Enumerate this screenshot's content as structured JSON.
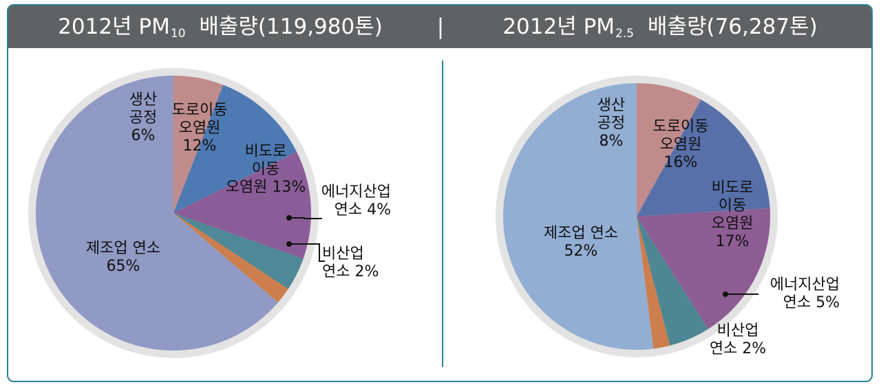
{
  "header": {
    "left": {
      "pre": "2012년 PM",
      "sub": "10",
      "post": " 배출량(119,980톤)"
    },
    "separator": "|",
    "right": {
      "pre": "2012년 PM",
      "sub": "2.5",
      "post": " 배출량(76,287톤)"
    }
  },
  "chart_data": [
    {
      "type": "pie",
      "title": "2012년 PM10 배출량(119,980톤)",
      "categories": [
        "생산공정",
        "도로이동오염원",
        "비도로이동오염원",
        "에너지산업연소",
        "비산업연소",
        "제조업 연소"
      ],
      "values": [
        6,
        12,
        13,
        4,
        2,
        65
      ],
      "colors": [
        "#c08c8b",
        "#4e7ab3",
        "#8b5d98",
        "#4f8896",
        "#cc7e4d",
        "#919ac4"
      ],
      "labels": [
        {
          "lines": [
            "생산",
            "공정",
            "6%"
          ]
        },
        {
          "lines": [
            "도로이동",
            "오염원",
            "12%"
          ]
        },
        {
          "lines": [
            "비도로",
            "이동",
            "오염원 13%"
          ]
        },
        {
          "lines": [
            "에너지산업",
            "연소 4%"
          ]
        },
        {
          "lines": [
            "비산업",
            "연소 2%"
          ]
        },
        {
          "lines": [
            "제조업 연소",
            "65%"
          ]
        }
      ]
    },
    {
      "type": "pie",
      "title": "2012년 PM2.5 배출량(76,287톤)",
      "categories": [
        "생산공정",
        "도로이동오염원",
        "비도로이동오염원",
        "에너지산업연소",
        "비산업연소",
        "제조업 연소"
      ],
      "values": [
        8,
        16,
        17,
        5,
        2,
        52
      ],
      "colors": [
        "#c08c8b",
        "#5770a9",
        "#8e5d94",
        "#4e8794",
        "#cc7e4d",
        "#93aed3"
      ],
      "labels": [
        {
          "lines": [
            "생산",
            "공정",
            "8%"
          ]
        },
        {
          "lines": [
            "도로이동",
            "오염원",
            "16%"
          ]
        },
        {
          "lines": [
            "비도로",
            "이동",
            "오염원",
            "17%"
          ]
        },
        {
          "lines": [
            "에너지산업",
            "연소 5%"
          ]
        },
        {
          "lines": [
            "비산업",
            "연소 2%"
          ]
        },
        {
          "lines": [
            "제조업 연소",
            "52%"
          ]
        }
      ]
    }
  ]
}
